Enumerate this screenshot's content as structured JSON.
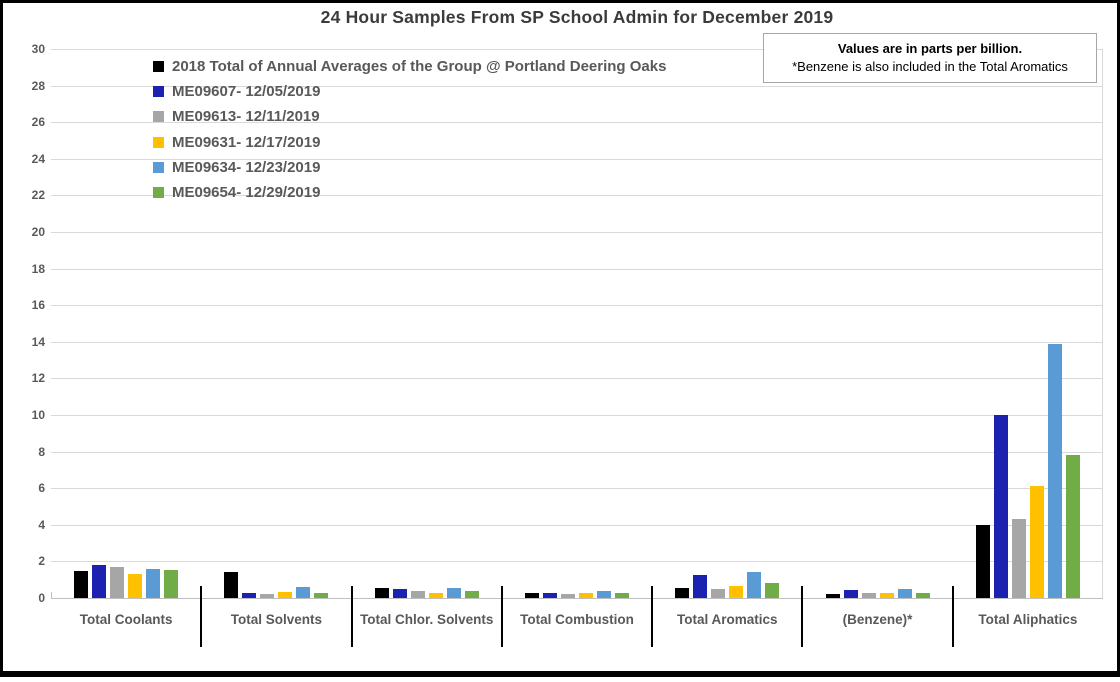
{
  "title": "24 Hour Samples From SP School Admin for December 2019",
  "note": {
    "line1": "Values are in parts per billion.",
    "line2": "*Benzene is also included in the Total Aromatics"
  },
  "chart_data": {
    "type": "bar",
    "title": "24 Hour Samples From SP School Admin for December 2019",
    "categories": [
      "Total Coolants",
      "Total Solvents",
      "Total Chlor. Solvents",
      "Total Combustion",
      "Total Aromatics",
      "(Benzene)*",
      "Total Aliphatics"
    ],
    "series": [
      {
        "name": "2018 Total of Annual Averages of the Group @ Portland Deering Oaks",
        "color": "#000000",
        "values": [
          1.5,
          1.4,
          0.55,
          0.3,
          0.55,
          0.2,
          4.0
        ]
      },
      {
        "name": "ME09607- 12/05/2019",
        "color": "#1c21b0",
        "values": [
          1.8,
          0.3,
          0.5,
          0.3,
          1.25,
          0.45,
          10.0
        ]
      },
      {
        "name": "ME09613- 12/11/2019",
        "color": "#a6a6a6",
        "values": [
          1.7,
          0.2,
          0.4,
          0.2,
          0.5,
          0.25,
          4.3
        ]
      },
      {
        "name": "ME09631- 12/17/2019",
        "color": "#ffc000",
        "values": [
          1.3,
          0.35,
          0.3,
          0.25,
          0.65,
          0.25,
          6.1
        ]
      },
      {
        "name": "ME09634- 12/23/2019",
        "color": "#5b9bd5",
        "values": [
          1.6,
          0.6,
          0.55,
          0.4,
          1.4,
          0.5,
          13.9
        ]
      },
      {
        "name": "ME09654- 12/29/2019",
        "color": "#70ad47",
        "values": [
          1.55,
          0.25,
          0.4,
          0.25,
          0.8,
          0.25,
          7.8
        ]
      }
    ],
    "ylabel": "",
    "xlabel": "",
    "ylim": [
      0,
      30
    ],
    "yticks": [
      0,
      2,
      4,
      6,
      8,
      10,
      12,
      14,
      16,
      18,
      20,
      22,
      24,
      26,
      28,
      30
    ],
    "grid": true,
    "legend_position": "inside-top-left"
  },
  "colors": {
    "gridline": "#d9d9d9",
    "axis_line": "#bfbfbf",
    "axis_text": "#595959",
    "title_text": "#3b3b3b",
    "category_divider": "#000000",
    "note_border": "#a6a6a6",
    "frame_border": "#000000"
  }
}
